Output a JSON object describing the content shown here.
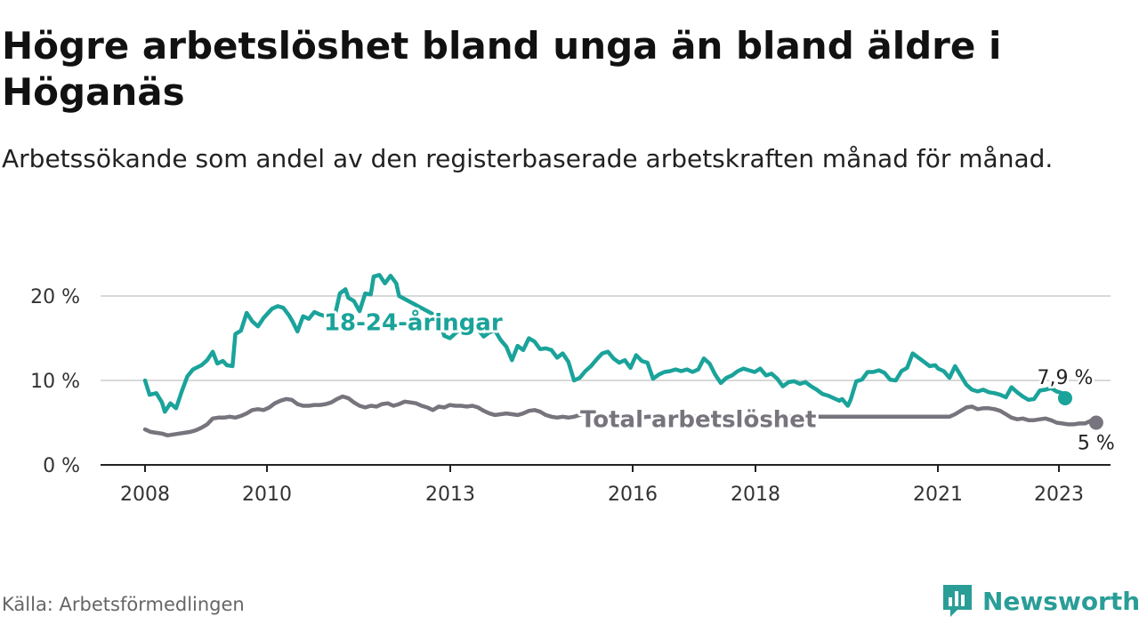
{
  "header": {
    "title": "Högre arbetslöshet bland unga än bland äldre i Höganäs",
    "subtitle": "Arbetssökande som andel av den registerbaserade arbetskraften månad för månad."
  },
  "footer": {
    "source": "Källa: Arbetsförmedlingen",
    "brand": "Newsworthy"
  },
  "colors": {
    "youth": "#1aa39a",
    "total": "#77747d",
    "grid": "#d9d9d9",
    "axis": "#222222",
    "brand": "#2a9d97"
  },
  "chart_data": {
    "type": "line",
    "title": "Högre arbetslöshet bland unga än bland äldre i Höganäs",
    "xlabel": "",
    "ylabel": "",
    "xlim": [
      2008.0,
      2023.85
    ],
    "ylim": [
      0,
      20
    ],
    "grid": true,
    "legend": "inline labels",
    "x_ticks": [
      {
        "value": 2008,
        "label": "2008"
      },
      {
        "value": 2010,
        "label": "2010"
      },
      {
        "value": 2013,
        "label": "2013"
      },
      {
        "value": 2016,
        "label": "2016"
      },
      {
        "value": 2018,
        "label": "2018"
      },
      {
        "value": 2021,
        "label": "2021"
      },
      {
        "value": 2023,
        "label": "2023"
      }
    ],
    "y_ticks": [
      {
        "value": 0,
        "label": "0 %"
      },
      {
        "value": 10,
        "label": "10 %"
      },
      {
        "value": 20,
        "label": "20 %"
      }
    ],
    "series": [
      {
        "name": "18-24-åringar",
        "key": "youth",
        "end_label": "7,9 %",
        "points": [
          [
            2008.0,
            10.0
          ],
          [
            2008.08,
            8.3
          ],
          [
            2008.2,
            8.5
          ],
          [
            2008.3,
            7.4
          ],
          [
            2008.35,
            6.3
          ],
          [
            2008.45,
            7.3
          ],
          [
            2008.55,
            6.7
          ],
          [
            2008.65,
            8.7
          ],
          [
            2008.75,
            10.5
          ],
          [
            2008.85,
            11.3
          ],
          [
            2009.0,
            11.8
          ],
          [
            2009.1,
            12.4
          ],
          [
            2009.2,
            13.4
          ],
          [
            2009.28,
            12.0
          ],
          [
            2009.38,
            12.3
          ],
          [
            2009.45,
            11.8
          ],
          [
            2009.55,
            11.7
          ],
          [
            2009.6,
            15.5
          ],
          [
            2009.7,
            15.9
          ],
          [
            2009.8,
            18.0
          ],
          [
            2009.9,
            17.0
          ],
          [
            2010.0,
            16.4
          ],
          [
            2010.1,
            17.4
          ],
          [
            2010.25,
            18.5
          ],
          [
            2010.35,
            18.8
          ],
          [
            2010.45,
            18.6
          ],
          [
            2010.55,
            17.7
          ],
          [
            2010.62,
            16.9
          ],
          [
            2010.7,
            15.8
          ],
          [
            2010.8,
            17.6
          ],
          [
            2010.9,
            17.3
          ],
          [
            2011.0,
            18.1
          ],
          [
            2011.1,
            17.8
          ],
          [
            2011.2,
            17.6
          ],
          [
            2011.35,
            17.3
          ],
          [
            2011.45,
            20.3
          ],
          [
            2011.55,
            20.8
          ],
          [
            2011.6,
            19.8
          ],
          [
            2011.7,
            19.4
          ],
          [
            2011.8,
            18.2
          ],
          [
            2011.9,
            20.3
          ],
          [
            2012.0,
            20.2
          ],
          [
            2012.05,
            22.3
          ],
          [
            2012.15,
            22.5
          ],
          [
            2012.25,
            21.5
          ],
          [
            2012.35,
            22.4
          ],
          [
            2012.45,
            21.5
          ],
          [
            2012.5,
            20.0
          ],
          [
            2013.2,
            17.5
          ],
          [
            2013.3,
            15.3
          ],
          [
            2013.4,
            15.0
          ],
          [
            2013.5,
            15.6
          ],
          [
            2013.6,
            16.2
          ],
          [
            2013.7,
            16.7
          ],
          [
            2013.8,
            16.4
          ],
          [
            2013.9,
            16.0
          ],
          [
            2014.0,
            15.2
          ],
          [
            2014.1,
            15.7
          ],
          [
            2014.2,
            15.9
          ],
          [
            2014.3,
            14.8
          ],
          [
            2014.4,
            14.0
          ],
          [
            2014.5,
            12.4
          ],
          [
            2014.6,
            14.1
          ],
          [
            2014.7,
            13.6
          ],
          [
            2014.8,
            15.0
          ],
          [
            2014.9,
            14.6
          ],
          [
            2015.0,
            13.7
          ],
          [
            2015.1,
            13.8
          ],
          [
            2015.2,
            13.6
          ],
          [
            2015.3,
            12.7
          ],
          [
            2015.4,
            13.2
          ],
          [
            2015.5,
            12.2
          ],
          [
            2015.6,
            10.0
          ],
          [
            2015.7,
            10.3
          ],
          [
            2015.8,
            11.1
          ],
          [
            2015.9,
            11.7
          ],
          [
            2016.0,
            12.5
          ],
          [
            2016.1,
            13.2
          ],
          [
            2016.2,
            13.4
          ],
          [
            2016.3,
            12.6
          ],
          [
            2016.4,
            12.1
          ],
          [
            2016.5,
            12.4
          ],
          [
            2016.6,
            11.5
          ],
          [
            2016.7,
            13.0
          ],
          [
            2016.8,
            12.3
          ],
          [
            2016.9,
            12.1
          ],
          [
            2017.0,
            10.2
          ],
          [
            2017.1,
            10.7
          ],
          [
            2017.2,
            11.0
          ],
          [
            2017.3,
            11.1
          ],
          [
            2017.4,
            11.3
          ],
          [
            2017.5,
            11.1
          ],
          [
            2017.6,
            11.3
          ],
          [
            2017.7,
            11.0
          ],
          [
            2017.8,
            11.3
          ],
          [
            2017.9,
            12.6
          ],
          [
            2018.0,
            12.0
          ],
          [
            2018.1,
            10.7
          ],
          [
            2018.2,
            9.7
          ],
          [
            2018.3,
            10.3
          ],
          [
            2018.4,
            10.6
          ],
          [
            2018.5,
            11.1
          ],
          [
            2018.6,
            11.4
          ],
          [
            2018.7,
            11.2
          ],
          [
            2018.8,
            11.0
          ],
          [
            2018.9,
            11.4
          ],
          [
            2019.0,
            10.6
          ],
          [
            2019.1,
            10.8
          ],
          [
            2019.2,
            10.2
          ],
          [
            2019.3,
            9.3
          ],
          [
            2019.4,
            9.8
          ],
          [
            2019.5,
            9.9
          ],
          [
            2019.6,
            9.6
          ],
          [
            2019.7,
            9.8
          ],
          [
            2019.8,
            9.3
          ],
          [
            2019.9,
            8.9
          ],
          [
            2020.0,
            8.4
          ],
          [
            2020.1,
            8.2
          ],
          [
            2020.2,
            7.9
          ],
          [
            2020.3,
            7.6
          ],
          [
            2020.35,
            7.8
          ],
          [
            2020.45,
            7.0
          ],
          [
            2020.5,
            7.7
          ],
          [
            2020.6,
            9.9
          ],
          [
            2020.7,
            10.1
          ],
          [
            2020.8,
            11.0
          ],
          [
            2020.9,
            11.0
          ],
          [
            2021.0,
            11.2
          ],
          [
            2021.1,
            10.9
          ],
          [
            2021.2,
            10.1
          ],
          [
            2021.3,
            10.0
          ],
          [
            2021.4,
            11.1
          ],
          [
            2021.5,
            11.5
          ],
          [
            2021.6,
            13.2
          ],
          [
            2021.7,
            12.7
          ],
          [
            2021.8,
            12.2
          ],
          [
            2021.9,
            11.7
          ],
          [
            2022.0,
            11.8
          ],
          [
            2022.05,
            11.4
          ],
          [
            2022.15,
            11.1
          ],
          [
            2022.25,
            10.3
          ],
          [
            2022.35,
            11.7
          ],
          [
            2022.45,
            10.6
          ],
          [
            2022.55,
            9.5
          ],
          [
            2022.65,
            8.9
          ],
          [
            2022.75,
            8.7
          ],
          [
            2022.85,
            8.9
          ],
          [
            2022.95,
            8.6
          ],
          [
            2023.05,
            8.5
          ],
          [
            2023.15,
            8.3
          ],
          [
            2023.25,
            8.0
          ],
          [
            2023.35,
            9.2
          ],
          [
            2023.45,
            8.6
          ],
          [
            2023.55,
            8.1
          ],
          [
            2023.65,
            7.7
          ],
          [
            2023.75,
            7.8
          ],
          [
            2023.85,
            8.8
          ],
          [
            2023.95,
            8.9
          ],
          [
            2024.05,
            9.1
          ],
          [
            2024.15,
            8.7
          ],
          [
            2024.25,
            8.5
          ],
          [
            2024.3,
            7.9
          ]
        ]
      },
      {
        "name": "Total arbetslöshet",
        "key": "total",
        "end_label": "5 %",
        "points": [
          [
            2008.0,
            4.2
          ],
          [
            2008.1,
            3.9
          ],
          [
            2008.2,
            3.8
          ],
          [
            2008.3,
            3.7
          ],
          [
            2008.4,
            3.5
          ],
          [
            2008.5,
            3.6
          ],
          [
            2008.6,
            3.7
          ],
          [
            2008.7,
            3.8
          ],
          [
            2008.8,
            3.9
          ],
          [
            2008.9,
            4.1
          ],
          [
            2009.0,
            4.4
          ],
          [
            2009.1,
            4.8
          ],
          [
            2009.2,
            5.5
          ],
          [
            2009.3,
            5.6
          ],
          [
            2009.4,
            5.6
          ],
          [
            2009.5,
            5.7
          ],
          [
            2009.6,
            5.6
          ],
          [
            2009.7,
            5.8
          ],
          [
            2009.8,
            6.1
          ],
          [
            2009.9,
            6.5
          ],
          [
            2010.0,
            6.6
          ],
          [
            2010.1,
            6.5
          ],
          [
            2010.2,
            6.8
          ],
          [
            2010.3,
            7.3
          ],
          [
            2010.4,
            7.6
          ],
          [
            2010.5,
            7.8
          ],
          [
            2010.6,
            7.7
          ],
          [
            2010.7,
            7.2
          ],
          [
            2010.8,
            7.0
          ],
          [
            2010.9,
            7.0
          ],
          [
            2011.0,
            7.1
          ],
          [
            2011.1,
            7.1
          ],
          [
            2011.2,
            7.2
          ],
          [
            2011.3,
            7.4
          ],
          [
            2011.4,
            7.8
          ],
          [
            2011.5,
            8.1
          ],
          [
            2011.6,
            7.9
          ],
          [
            2011.7,
            7.4
          ],
          [
            2011.8,
            7.0
          ],
          [
            2011.9,
            6.8
          ],
          [
            2012.0,
            7.0
          ],
          [
            2012.1,
            6.9
          ],
          [
            2012.2,
            7.2
          ],
          [
            2012.3,
            7.3
          ],
          [
            2012.4,
            7.0
          ],
          [
            2012.5,
            7.2
          ],
          [
            2012.6,
            7.5
          ],
          [
            2012.7,
            7.4
          ],
          [
            2012.8,
            7.3
          ],
          [
            2012.9,
            7.0
          ],
          [
            2013.0,
            6.8
          ],
          [
            2013.1,
            6.5
          ],
          [
            2013.2,
            6.9
          ],
          [
            2013.3,
            6.8
          ],
          [
            2013.4,
            7.1
          ],
          [
            2013.5,
            7.0
          ],
          [
            2013.6,
            7.0
          ],
          [
            2013.7,
            6.9
          ],
          [
            2013.8,
            7.0
          ],
          [
            2013.9,
            6.8
          ],
          [
            2014.0,
            6.4
          ],
          [
            2014.1,
            6.1
          ],
          [
            2014.2,
            5.9
          ],
          [
            2014.3,
            6.0
          ],
          [
            2014.4,
            6.1
          ],
          [
            2014.5,
            6.0
          ],
          [
            2014.6,
            5.9
          ],
          [
            2014.7,
            6.1
          ],
          [
            2014.8,
            6.4
          ],
          [
            2014.9,
            6.5
          ],
          [
            2015.0,
            6.3
          ],
          [
            2015.1,
            5.9
          ],
          [
            2015.2,
            5.7
          ],
          [
            2015.3,
            5.6
          ],
          [
            2015.4,
            5.7
          ],
          [
            2015.5,
            5.6
          ],
          [
            2015.6,
            5.7
          ],
          [
            2015.7,
            5.9
          ],
          [
            2015.8,
            6.2
          ],
          [
            2015.9,
            6.1
          ],
          [
            2016.0,
            5.8
          ],
          [
            2016.1,
            5.5
          ],
          [
            2016.2,
            5.3
          ],
          [
            2016.3,
            5.4
          ],
          [
            2016.4,
            5.5
          ],
          [
            2016.5,
            5.4
          ],
          [
            2016.6,
            5.5
          ],
          [
            2016.7,
            5.6
          ],
          [
            2016.8,
            5.6
          ],
          [
            2016.9,
            5.7
          ],
          [
            2022.25,
            5.7
          ],
          [
            2022.35,
            6.0
          ],
          [
            2022.45,
            6.4
          ],
          [
            2022.55,
            6.8
          ],
          [
            2022.65,
            6.9
          ],
          [
            2022.75,
            6.6
          ],
          [
            2022.85,
            6.7
          ],
          [
            2022.95,
            6.7
          ],
          [
            2023.05,
            6.6
          ],
          [
            2023.15,
            6.4
          ],
          [
            2023.25,
            6.0
          ],
          [
            2023.35,
            5.6
          ],
          [
            2023.45,
            5.4
          ],
          [
            2023.55,
            5.5
          ],
          [
            2023.65,
            5.3
          ],
          [
            2023.75,
            5.3
          ],
          [
            2023.85,
            5.4
          ],
          [
            2023.95,
            5.5
          ],
          [
            2024.05,
            5.3
          ],
          [
            2024.15,
            5.0
          ],
          [
            2024.25,
            4.9
          ],
          [
            2024.35,
            4.8
          ],
          [
            2024.45,
            4.8
          ],
          [
            2024.55,
            4.9
          ],
          [
            2024.65,
            4.9
          ],
          [
            2024.75,
            5.2
          ],
          [
            2024.85,
            5.0
          ]
        ]
      }
    ],
    "annotations": [
      {
        "text": "18-24-åringar",
        "series": "youth",
        "at_x": 2012.75,
        "at_y": 16.9
      },
      {
        "text": "Total arbetslöshet",
        "series": "total",
        "at_x": 2017.8,
        "at_y": 5.4
      }
    ]
  }
}
